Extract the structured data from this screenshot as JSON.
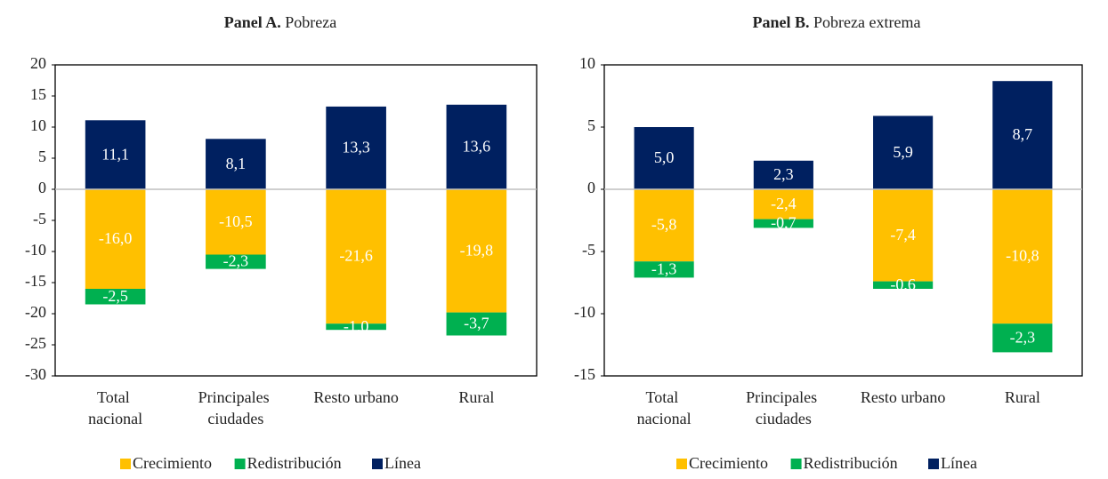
{
  "chart_data": [
    {
      "type": "stacked_bar",
      "panel": "Panel A.",
      "title": "Pobreza",
      "categories": [
        "Total nacional",
        "Principales ciudades",
        "Resto urbano",
        "Rural"
      ],
      "series": [
        {
          "name": "Crecimiento",
          "color": "#FFC000",
          "values": [
            -16.0,
            -10.5,
            -21.6,
            -19.8
          ],
          "value_labels": [
            "-16,0",
            "-10,5",
            "-21,6",
            "-19,8"
          ]
        },
        {
          "name": "Redistribución",
          "color": "#00B050",
          "values": [
            -2.5,
            -2.3,
            -1.0,
            -3.7
          ],
          "value_labels": [
            "-2,5",
            "-2,3",
            "-1,0",
            "-3,7"
          ]
        },
        {
          "name": "Línea",
          "color": "#002060",
          "values": [
            11.1,
            8.1,
            13.3,
            13.6
          ],
          "value_labels": [
            "11,1",
            "8,1",
            "13,3",
            "13,6"
          ]
        }
      ],
      "ylim": [
        -30,
        20
      ],
      "yticks": [
        20,
        15,
        10,
        5,
        0,
        -5,
        -10,
        -15,
        -20,
        -25,
        -30
      ],
      "legend": "bottom"
    },
    {
      "type": "stacked_bar",
      "panel": "Panel B.",
      "title": "Pobreza extrema",
      "categories": [
        "Total nacional",
        "Principales ciudades",
        "Resto urbano",
        "Rural"
      ],
      "series": [
        {
          "name": "Crecimiento",
          "color": "#FFC000",
          "values": [
            -5.8,
            -2.4,
            -7.4,
            -10.8
          ],
          "value_labels": [
            "-5,8",
            "-2,4",
            "-7,4",
            "-10,8"
          ]
        },
        {
          "name": "Redistribución",
          "color": "#00B050",
          "values": [
            -1.3,
            -0.7,
            -0.6,
            -2.3
          ],
          "value_labels": [
            "-1,3",
            "-0,7",
            "-0,6",
            "-2,3"
          ]
        },
        {
          "name": "Línea",
          "color": "#002060",
          "values": [
            5.0,
            2.3,
            5.9,
            8.7
          ],
          "value_labels": [
            "5,0",
            "2,3",
            "5,9",
            "8,7"
          ]
        }
      ],
      "ylim": [
        -15,
        10
      ],
      "yticks": [
        10,
        5,
        0,
        -5,
        -10,
        -15
      ],
      "legend": "bottom"
    }
  ]
}
